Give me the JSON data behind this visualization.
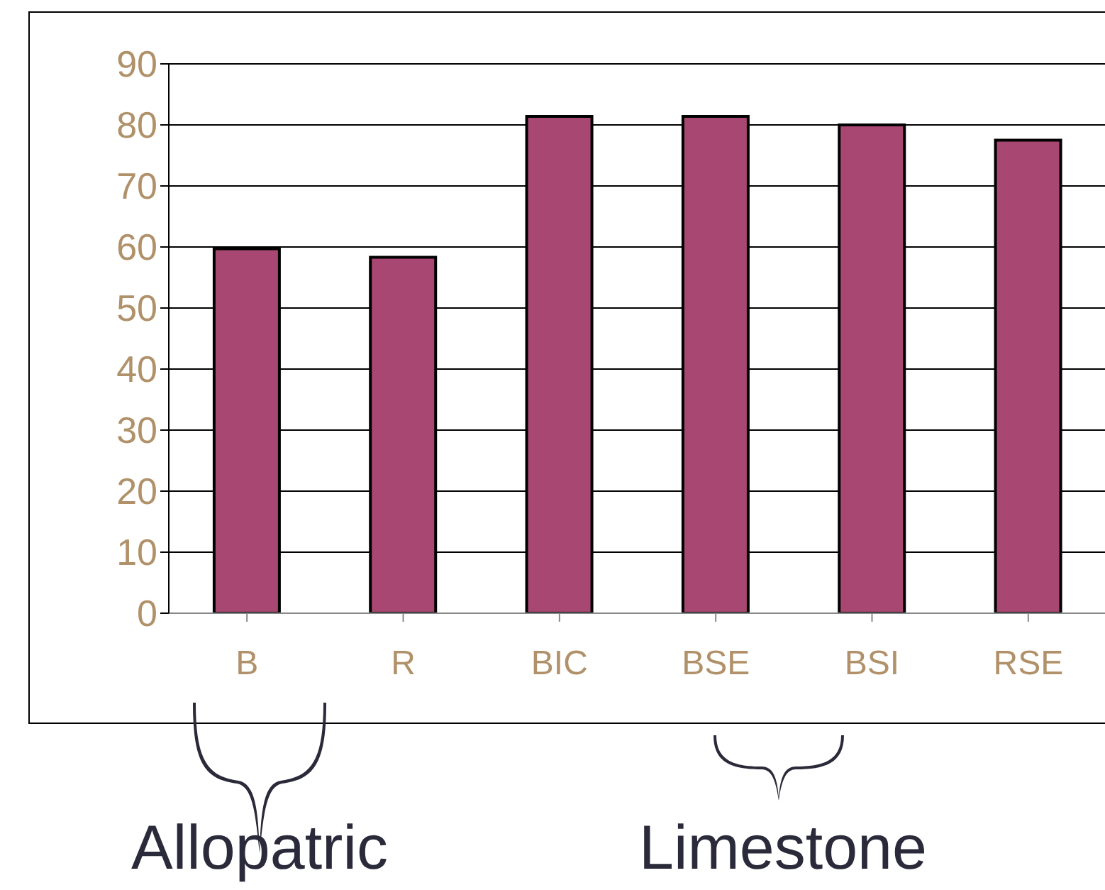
{
  "chart_data": {
    "type": "bar",
    "categories": [
      "B",
      "R",
      "BIC",
      "BSE",
      "BSI",
      "RSE"
    ],
    "values": [
      59.7,
      58.3,
      81.4,
      81.4,
      80,
      77.5
    ],
    "color": "#a84872",
    "ylim": [
      0,
      90
    ],
    "yticks": [
      0,
      10,
      20,
      30,
      40,
      50,
      60,
      70,
      80,
      90
    ],
    "grid": "y",
    "legend": false,
    "annotations": [
      "Allopatric",
      "Limestone"
    ]
  }
}
